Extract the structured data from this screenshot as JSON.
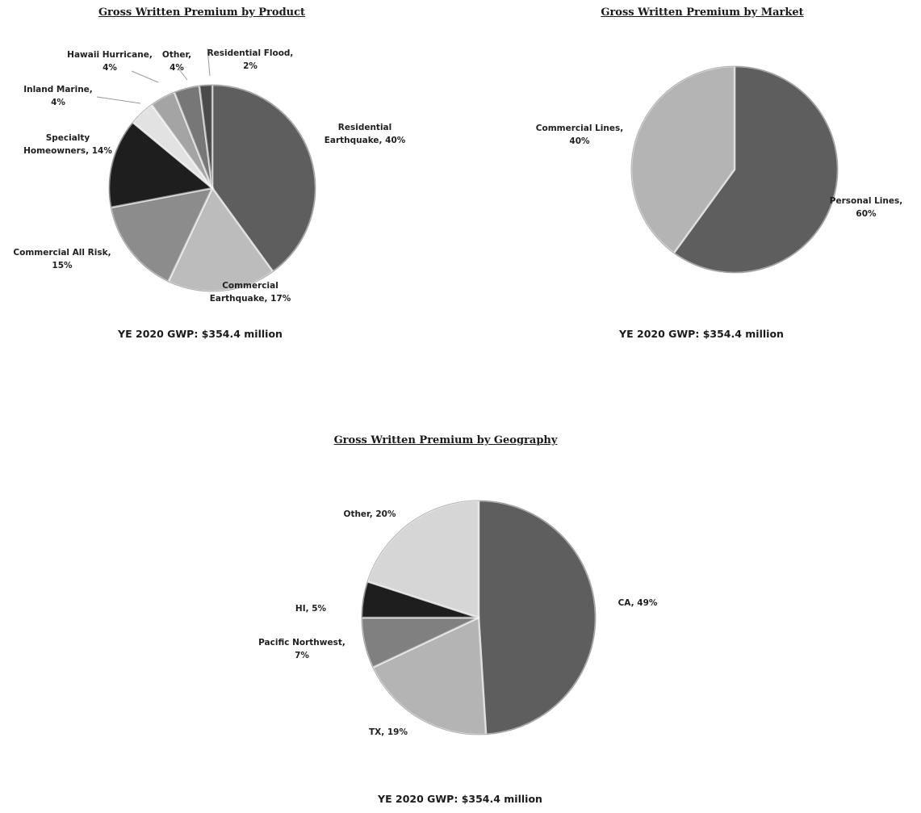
{
  "chart_data": [
    {
      "type": "pie",
      "title": "Gross Written Premium by Product",
      "caption": "YE 2020 GWP: $354.4 million",
      "slices": [
        {
          "label_lines": [
            "Residential",
            "Earthquake, 40%"
          ],
          "value": 40,
          "color": "#5e5e5e"
        },
        {
          "label_lines": [
            "Commercial",
            "Earthquake, 17%"
          ],
          "value": 17,
          "color": "#bcbcbc"
        },
        {
          "label_lines": [
            "Commercial All Risk,",
            "15%"
          ],
          "value": 15,
          "color": "#8c8c8c"
        },
        {
          "label_lines": [
            "Specialty",
            "Homeowners, 14%"
          ],
          "value": 14,
          "color": "#1e1e1e"
        },
        {
          "label_lines": [
            "Inland Marine,",
            "4%"
          ],
          "value": 4,
          "color": "#e2e2e2"
        },
        {
          "label_lines": [
            "Hawaii Hurricane,",
            "4%"
          ],
          "value": 4,
          "color": "#a4a4a4"
        },
        {
          "label_lines": [
            "Other,",
            "4%"
          ],
          "value": 4,
          "color": "#777777"
        },
        {
          "label_lines": [
            "Residential Flood,",
            "2%"
          ],
          "value": 2,
          "color": "#4a4a4a"
        }
      ]
    },
    {
      "type": "pie",
      "title": "Gross Written Premium by Market",
      "caption": "YE 2020 GWP: $354.4 million",
      "slices": [
        {
          "label_lines": [
            "Personal Lines,",
            "60%"
          ],
          "value": 60,
          "color": "#5e5e5e"
        },
        {
          "label_lines": [
            "Commercial Lines,",
            "40%"
          ],
          "value": 40,
          "color": "#b4b4b4"
        }
      ]
    },
    {
      "type": "pie",
      "title": "Gross Written Premium by Geography",
      "caption": "YE 2020 GWP: $354.4 million",
      "slices": [
        {
          "label_lines": [
            "CA, 49%"
          ],
          "value": 49,
          "color": "#5e5e5e"
        },
        {
          "label_lines": [
            "TX, 19%"
          ],
          "value": 19,
          "color": "#b4b4b4"
        },
        {
          "label_lines": [
            "Pacific Northwest,",
            "7%"
          ],
          "value": 7,
          "color": "#808080"
        },
        {
          "label_lines": [
            "HI, 5%"
          ],
          "value": 5,
          "color": "#1e1e1e"
        },
        {
          "label_lines": [
            "Other, 20%"
          ],
          "value": 20,
          "color": "#d6d6d6"
        }
      ]
    }
  ]
}
